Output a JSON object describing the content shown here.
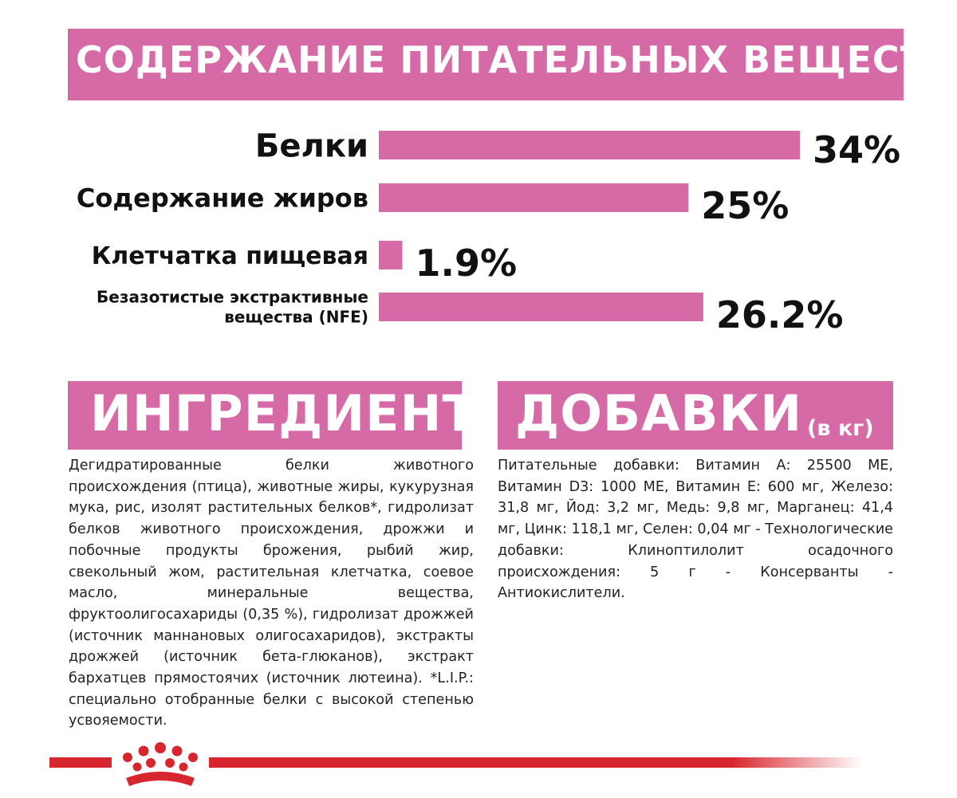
{
  "nutrition": {
    "title": "СОДЕРЖАНИЕ ПИТАТЕЛЬНЫХ ВЕЩЕСТВ"
  },
  "chart_data": {
    "type": "bar",
    "orientation": "horizontal",
    "categories": [
      [
        "Белки"
      ],
      [
        "Содержание жиров"
      ],
      [
        "Клетчатка пищевая"
      ],
      [
        "Безазотистые экстрактивные",
        "вещества (NFE)"
      ]
    ],
    "values": [
      34,
      25,
      1.9,
      26.2
    ],
    "value_labels": [
      "34%",
      "25%",
      "1.9%",
      "26.2%"
    ],
    "title": "СОДЕРЖАНИЕ ПИТАТЕЛЬНЫХ ВЕЩЕСТВ",
    "xlabel": "",
    "ylabel": "",
    "grid": false,
    "bar_color": "#d66aa6"
  },
  "ingredients": {
    "title": "ИНГРЕДИЕНТЫ",
    "text": "Дегидратированные белки животного происхождения (птица), животные жиры, кукурузная мука, рис, изолят растительных белков*, гидролизат белков животного происхождения, дрожжи и побочные продукты брожения, рыбий жир, свекольный жом, растительная клетчатка, соевое масло, минеральные вещества, фруктоолигосахариды (0,35 %), гидролизат дрожжей (источник маннановых олигосахаридов), экстракты дрожжей (источник бета-глюканов), экстракт бархатцев прямостоячих (источник лютеина). *L.I.P.: специально отобранные белки с высокой степенью усвояемости."
  },
  "additives": {
    "title": "ДОБАВКИ",
    "unit": "(в кг)",
    "text": "Питательные добавки: Витамин А: 25500 МЕ, Витамин D3: 1000 МЕ, Витамин Е: 600 мг, Железо: 31,8 мг, Йод: 3,2 мг, Медь: 9,8 мг, Марганец: 41,4 мг, Цинк: 118,1 мг, Селен: 0,04 мг - Технологические добавки: Клиноптилолит осадочного происхождения: 5 г - Консерванты - Антиокислители."
  },
  "footer": {
    "line_color": "#d8262e",
    "logo_icon": "crown-icon"
  }
}
